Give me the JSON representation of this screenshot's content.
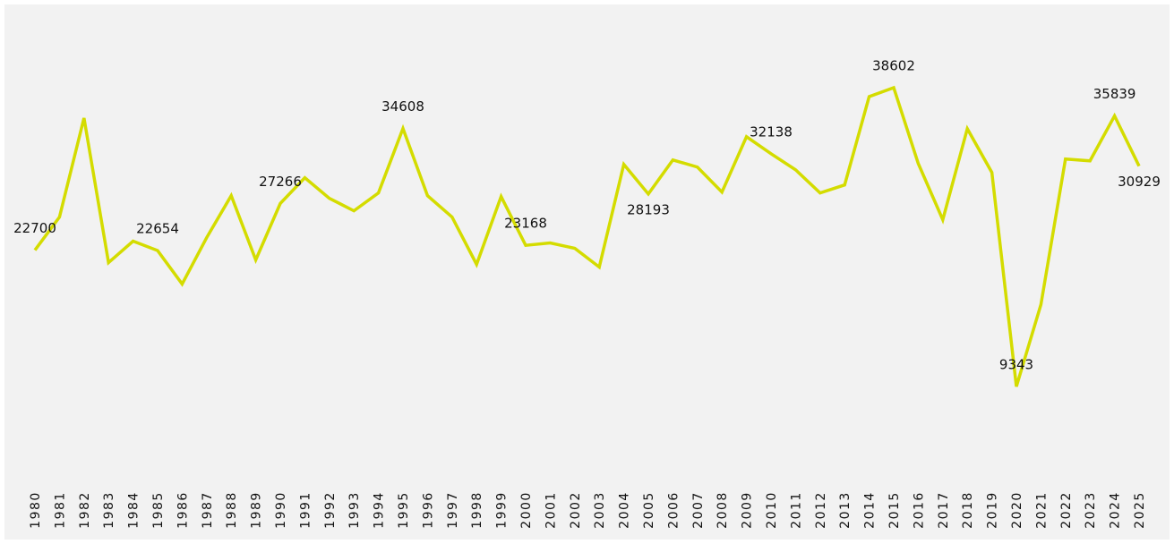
{
  "chart_data": {
    "type": "line",
    "categories": [
      "1980",
      "1981",
      "1982",
      "1983",
      "1984",
      "1985",
      "1986",
      "1987",
      "1988",
      "1989",
      "1990",
      "1991",
      "1992",
      "1993",
      "1994",
      "1995",
      "1996",
      "1997",
      "1998",
      "1999",
      "2000",
      "2001",
      "2002",
      "2003",
      "2004",
      "2005",
      "2006",
      "2007",
      "2008",
      "2009",
      "2010",
      "2011",
      "2012",
      "2013",
      "2014",
      "2015",
      "2016",
      "2017",
      "2018",
      "2019",
      "2020",
      "2021",
      "2022",
      "2023",
      "2024",
      "2025"
    ],
    "series": [
      {
        "color": "#d4dc00",
        "values": [
          22700,
          25934,
          35635,
          21476,
          23574,
          22654,
          19379,
          23924,
          28031,
          21739,
          27266,
          29780,
          27769,
          26546,
          28294,
          34608,
          28031,
          25934,
          21302,
          27944,
          23168,
          23399,
          22875,
          21039,
          31090,
          28193,
          31527,
          30828,
          28381,
          33800,
          32138,
          30566,
          28294,
          29080,
          37733,
          38602,
          31178,
          25672,
          34586,
          30304,
          9343,
          17369,
          31615,
          31440,
          35839,
          30929
        ],
        "value_labels": [
          "22700",
          null,
          null,
          null,
          null,
          "22654",
          null,
          null,
          null,
          null,
          "27266",
          null,
          null,
          null,
          null,
          "34608",
          null,
          null,
          null,
          null,
          "23168",
          null,
          null,
          null,
          null,
          "28193",
          null,
          null,
          null,
          null,
          "32138",
          null,
          null,
          null,
          null,
          "38602",
          null,
          null,
          null,
          null,
          "9343",
          null,
          null,
          null,
          "35839",
          "30929"
        ]
      }
    ]
  }
}
